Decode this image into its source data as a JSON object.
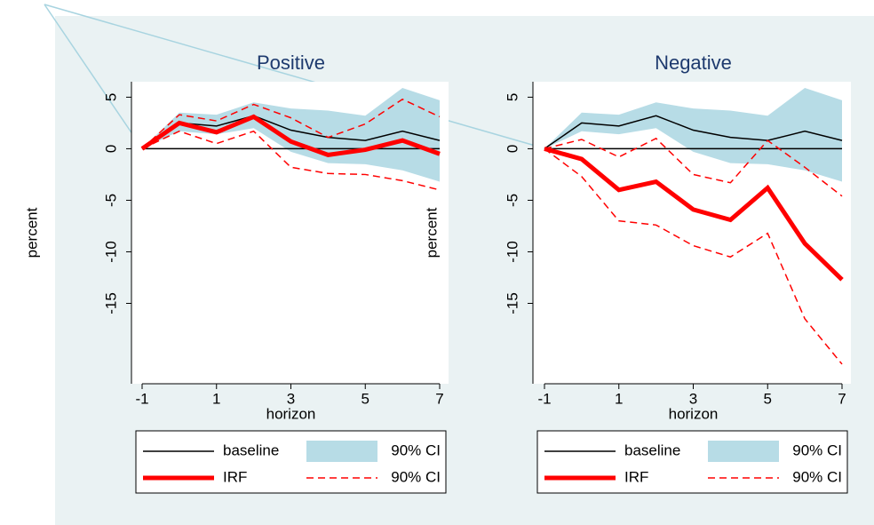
{
  "chart_data": [
    {
      "type": "line",
      "title": "Positive",
      "xlabel": "horizon",
      "ylabel": "percent",
      "x": [
        -1,
        0,
        1,
        2,
        3,
        4,
        5,
        6,
        7
      ],
      "xlim": [
        -1,
        7
      ],
      "xticks": [
        -1,
        1,
        3,
        5,
        7
      ],
      "ylim": [
        -22.8,
        6.5
      ],
      "yticks": [
        5,
        0,
        -5,
        -10,
        -15
      ],
      "reference_line": 0,
      "series": [
        {
          "name": "baseline",
          "style": "solid",
          "color": "#000000",
          "values": [
            0,
            2.5,
            2.2,
            3.2,
            1.8,
            1.1,
            0.8,
            1.7,
            0.8
          ]
        },
        {
          "name": "90% CI",
          "style": "band",
          "color": "#b7dce6",
          "lower": [
            0,
            1.7,
            1.4,
            2.0,
            -0.3,
            -1.4,
            -1.5,
            -2.1,
            -3.2
          ],
          "upper": [
            0,
            3.5,
            3.3,
            4.5,
            3.9,
            3.7,
            3.2,
            5.9,
            4.7
          ]
        },
        {
          "name": "IRF",
          "style": "thick",
          "color": "#ff0000",
          "values": [
            0,
            2.5,
            1.6,
            3.1,
            0.7,
            -0.6,
            -0.1,
            0.8,
            -0.5
          ]
        },
        {
          "name": "90% CI",
          "style": "dashed",
          "color": "#ff0000",
          "lower": [
            0,
            1.7,
            0.5,
            1.7,
            -1.8,
            -2.4,
            -2.5,
            -3.1,
            -4.0
          ],
          "upper": [
            0,
            3.3,
            2.7,
            4.3,
            3.0,
            1.1,
            2.4,
            4.8,
            3.1
          ]
        }
      ]
    },
    {
      "type": "line",
      "title": "Negative",
      "xlabel": "horizon",
      "ylabel": "percent",
      "x": [
        -1,
        0,
        1,
        2,
        3,
        4,
        5,
        6,
        7
      ],
      "xlim": [
        -1,
        7
      ],
      "xticks": [
        -1,
        1,
        3,
        5,
        7
      ],
      "ylim": [
        -22.8,
        6.5
      ],
      "yticks": [
        5,
        0,
        -5,
        -10,
        -15
      ],
      "reference_line": 0,
      "series": [
        {
          "name": "baseline",
          "style": "solid",
          "color": "#000000",
          "values": [
            0,
            2.5,
            2.2,
            3.2,
            1.8,
            1.1,
            0.8,
            1.7,
            0.8
          ]
        },
        {
          "name": "90% CI",
          "style": "band",
          "color": "#b7dce6",
          "lower": [
            0,
            1.7,
            1.4,
            2.0,
            -0.3,
            -1.4,
            -1.5,
            -2.1,
            -3.2
          ],
          "upper": [
            0,
            3.5,
            3.3,
            4.5,
            3.9,
            3.7,
            3.2,
            5.9,
            4.7
          ]
        },
        {
          "name": "IRF",
          "style": "thick",
          "color": "#ff0000",
          "values": [
            0,
            -1.0,
            -4.0,
            -3.2,
            -5.9,
            -6.9,
            -3.8,
            -9.2,
            -12.7
          ]
        },
        {
          "name": "90% CI",
          "style": "dashed",
          "color": "#ff0000",
          "lower": [
            0,
            -2.7,
            -7.0,
            -7.4,
            -9.4,
            -10.5,
            -8.2,
            -16.5,
            -20.9
          ],
          "upper": [
            0,
            0.9,
            -0.8,
            1.0,
            -2.5,
            -3.3,
            0.8,
            -1.8,
            -4.6
          ]
        }
      ]
    }
  ]
}
